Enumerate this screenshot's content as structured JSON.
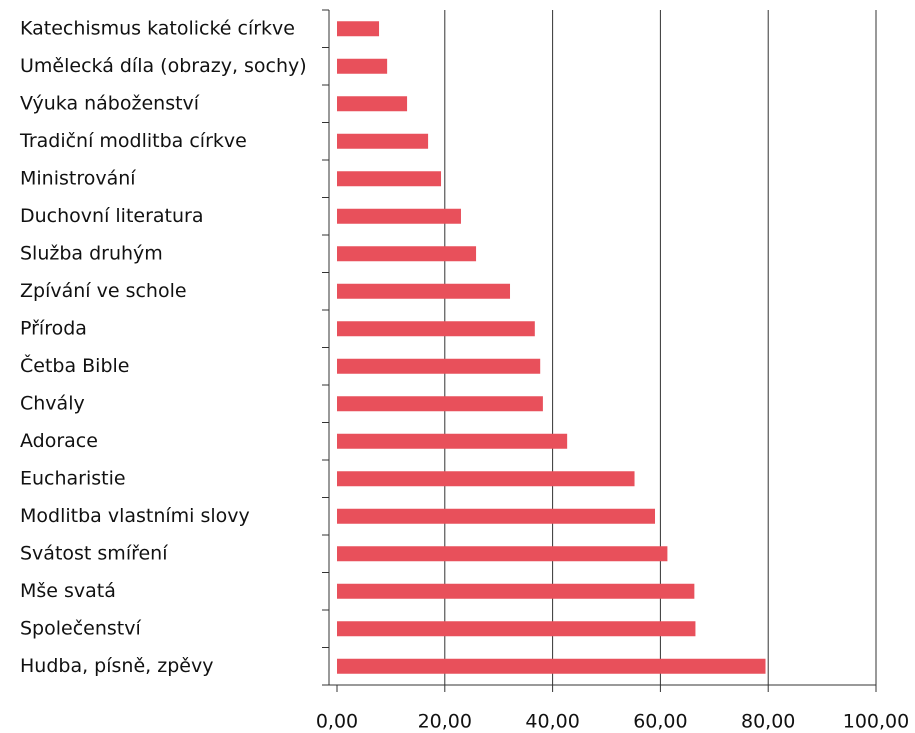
{
  "chart_data": {
    "type": "bar",
    "orientation": "horizontal",
    "categories": [
      "Katechismus katolické církve",
      "Umělecká díla (obrazy, sochy)",
      "Výuka náboženství",
      "Tradiční modlitba církve",
      "Ministrování",
      "Duchovní literatura",
      "Služba druhým",
      "Zpívání ve schole",
      "Příroda",
      "Četba Bible",
      "Chvály",
      "Adorace",
      "Eucharistie",
      "Modlitba vlastními slovy",
      "Svátost smíření",
      "Mše svatá",
      "Společenství",
      "Hudba, písně, zpěvy"
    ],
    "values": [
      7.8,
      9.3,
      13.0,
      16.9,
      19.3,
      23.0,
      25.8,
      32.1,
      36.7,
      37.7,
      38.2,
      42.7,
      55.2,
      59.0,
      61.3,
      66.3,
      66.5,
      79.5
    ],
    "color": "#e8505b",
    "xlim": [
      0,
      100
    ],
    "xticks": [
      {
        "value": 0,
        "label": "0,00"
      },
      {
        "value": 20,
        "label": "20,00"
      },
      {
        "value": 40,
        "label": "40,00"
      },
      {
        "value": 60,
        "label": "60,00"
      },
      {
        "value": 80,
        "label": "80,00"
      },
      {
        "value": 100,
        "label": "100,00"
      }
    ],
    "grid": true
  }
}
